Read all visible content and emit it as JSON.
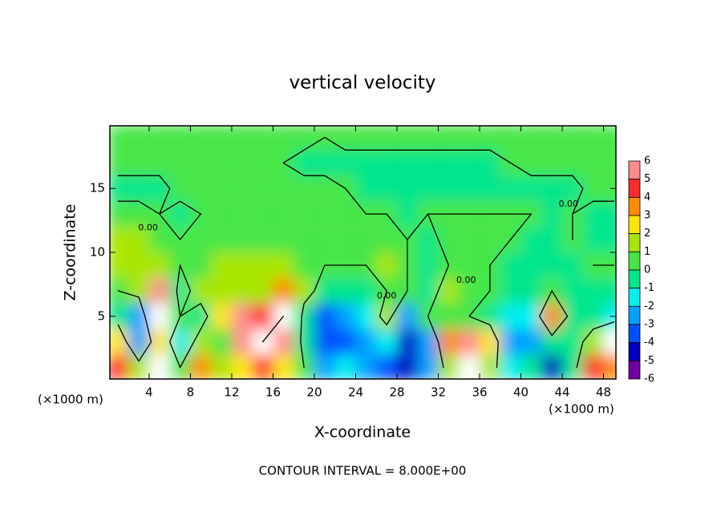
{
  "chart_data": {
    "type": "contour",
    "title": "vertical velocity",
    "x_label": "X-coordinate",
    "y_label": "Z-coordinate",
    "x_unit_label": "(×1000 m)",
    "footer": "CONTOUR INTERVAL = 8.000E+00",
    "xlim": [
      0.2,
      49.2
    ],
    "ylim": [
      0.1,
      19.9
    ],
    "xticks": [
      4,
      8,
      12,
      16,
      20,
      24,
      28,
      32,
      36,
      40,
      44,
      48
    ],
    "yticks": [
      5,
      10,
      15
    ],
    "x": [
      1,
      3,
      5,
      7,
      9,
      11,
      13,
      15,
      17,
      19,
      21,
      23,
      25,
      27,
      29,
      31,
      33,
      35,
      37,
      39,
      41,
      43,
      45,
      47,
      49
    ],
    "y": [
      1,
      3,
      5,
      7,
      9,
      11,
      13,
      15,
      17,
      19
    ],
    "z": [
      [
        4,
        1,
        7,
        0,
        3,
        1,
        2,
        4,
        2,
        0,
        -3,
        -2,
        -3,
        -4,
        -5,
        -3,
        1,
        7,
        1,
        -2,
        -1,
        -5,
        -1,
        4,
        3
      ],
      [
        2,
        -3,
        2,
        -2,
        1,
        0,
        6,
        8,
        5,
        -1,
        -4,
        -4,
        -3,
        -2,
        -5,
        -3,
        3,
        6,
        2,
        -3,
        -3,
        -1,
        -1,
        1,
        7
      ],
      [
        -1,
        -3,
        7,
        0,
        -1,
        2,
        5,
        4,
        8,
        -1,
        -4,
        -3,
        -2,
        1,
        -3,
        0,
        0,
        0,
        -1,
        -2,
        -2,
        3,
        -1,
        -1,
        -2
      ],
      [
        0,
        1,
        5,
        -1,
        1,
        1,
        1,
        1,
        3,
        1,
        -1,
        -1,
        -1,
        0,
        0,
        -1,
        1,
        0,
        0,
        -1,
        -1,
        0,
        -1,
        -1,
        -1
      ],
      [
        1,
        1,
        1,
        0,
        0,
        1,
        1,
        1,
        1,
        0,
        0,
        0,
        0,
        1,
        0,
        -0.5,
        0,
        0.5,
        0,
        -1,
        -1,
        -1,
        -0.5,
        0,
        0
      ],
      [
        1,
        1,
        0.5,
        0,
        0,
        0.5,
        0.5,
        0.5,
        0.5,
        0.5,
        0.5,
        0.5,
        0.5,
        0.5,
        0,
        -0.5,
        0.5,
        0.5,
        0.5,
        0,
        -0.5,
        -1,
        0,
        -0.5,
        -0.5
      ],
      [
        0.5,
        0.5,
        0,
        -0.5,
        0,
        0.5,
        0.5,
        0.5,
        0.5,
        0.5,
        0.5,
        0.5,
        0,
        0,
        -0.5,
        0,
        0,
        0,
        0,
        0,
        0,
        -0.5,
        0,
        -0.5,
        -0.5
      ],
      [
        -0.5,
        -0.5,
        -0.5,
        0.5,
        0.5,
        0.5,
        0.5,
        0.5,
        0.5,
        0.5,
        0.5,
        0,
        -0.5,
        -0.5,
        -0.5,
        -0.5,
        -0.5,
        -0.5,
        -0.5,
        -0.5,
        -0.5,
        -0.5,
        -0.5,
        0.5,
        0.5
      ],
      [
        0.5,
        0.5,
        0.5,
        0,
        0.5,
        0.5,
        0.5,
        0.5,
        0,
        -0.5,
        -0.5,
        -0.5,
        -0.5,
        -0.5,
        -0.5,
        -0.5,
        -0.5,
        -0.5,
        -0.5,
        0,
        0.5,
        0.5,
        0.5,
        0.5,
        0.5
      ],
      [
        0.5,
        0.5,
        0.5,
        0.5,
        0.5,
        0.5,
        0.5,
        0.5,
        0.5,
        0.5,
        0,
        0.5,
        0.5,
        0.5,
        0.5,
        0.5,
        0.5,
        0.5,
        0.5,
        0.5,
        0.5,
        0.5,
        0.5,
        0.5,
        0.5
      ]
    ],
    "contour_levels": [
      -8,
      0,
      8
    ],
    "contour_labels": [
      {
        "text": "0.00",
        "x": 3.9,
        "y": 11.9
      },
      {
        "text": "0.00",
        "x": 27,
        "y": 6.6
      },
      {
        "text": "0.00",
        "x": 34.7,
        "y": 7.8
      },
      {
        "text": "0.00",
        "x": 44.6,
        "y": 13.75
      }
    ],
    "colorbar_ticks": [
      6,
      5,
      4,
      3,
      2,
      1,
      0,
      -1,
      -2,
      -3,
      -4,
      -5,
      -6
    ],
    "colors": [
      "#ff8c8c",
      "#ff2a2a",
      "#ff8c00",
      "#ffe600",
      "#a8e600",
      "#46e646",
      "#00e68c",
      "#00f0f0",
      "#00a0ff",
      "#0050ff",
      "#0000c0",
      "#7000a0"
    ],
    "over_color": "#ffffff"
  }
}
